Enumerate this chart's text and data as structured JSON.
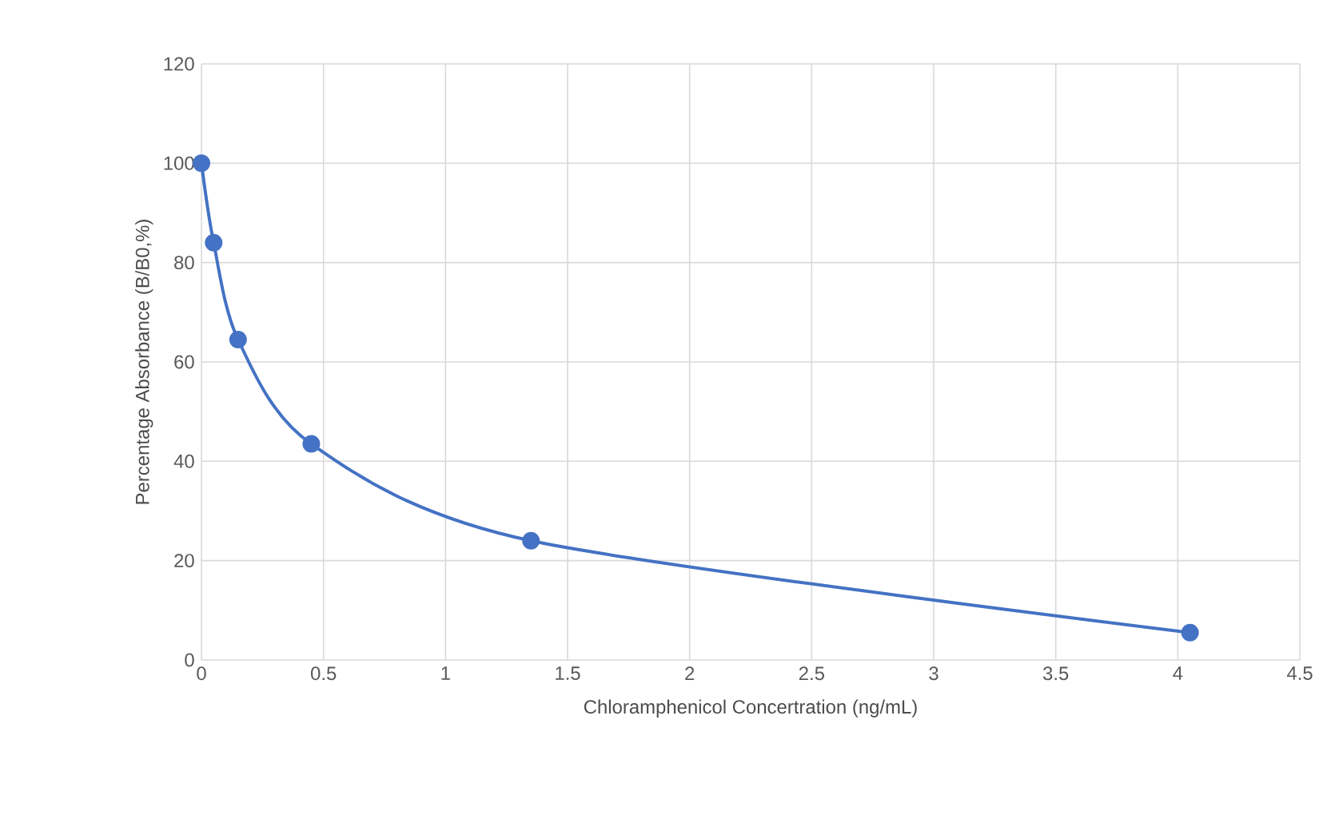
{
  "chart_data": {
    "type": "line",
    "xlabel": "Chloramphenicol Concertration (ng/mL)",
    "ylabel": "Percentage Absorbance (B/B0,%)",
    "x": [
      0,
      0.05,
      0.15,
      0.45,
      1.35,
      4.05
    ],
    "series": [
      {
        "color": "#4472c4",
        "values": [
          100,
          84,
          64.5,
          43.5,
          24,
          5.5
        ]
      }
    ],
    "xlim": [
      0,
      4.5
    ],
    "xticks": [
      0,
      0.5,
      1,
      1.5,
      2,
      2.5,
      3,
      3.5,
      4,
      4.5
    ],
    "ylim": [
      0,
      120
    ],
    "yticks": [
      0,
      20,
      40,
      60,
      80,
      100,
      120
    ],
    "grid": true,
    "marker": "circle",
    "line_style": "solid"
  }
}
